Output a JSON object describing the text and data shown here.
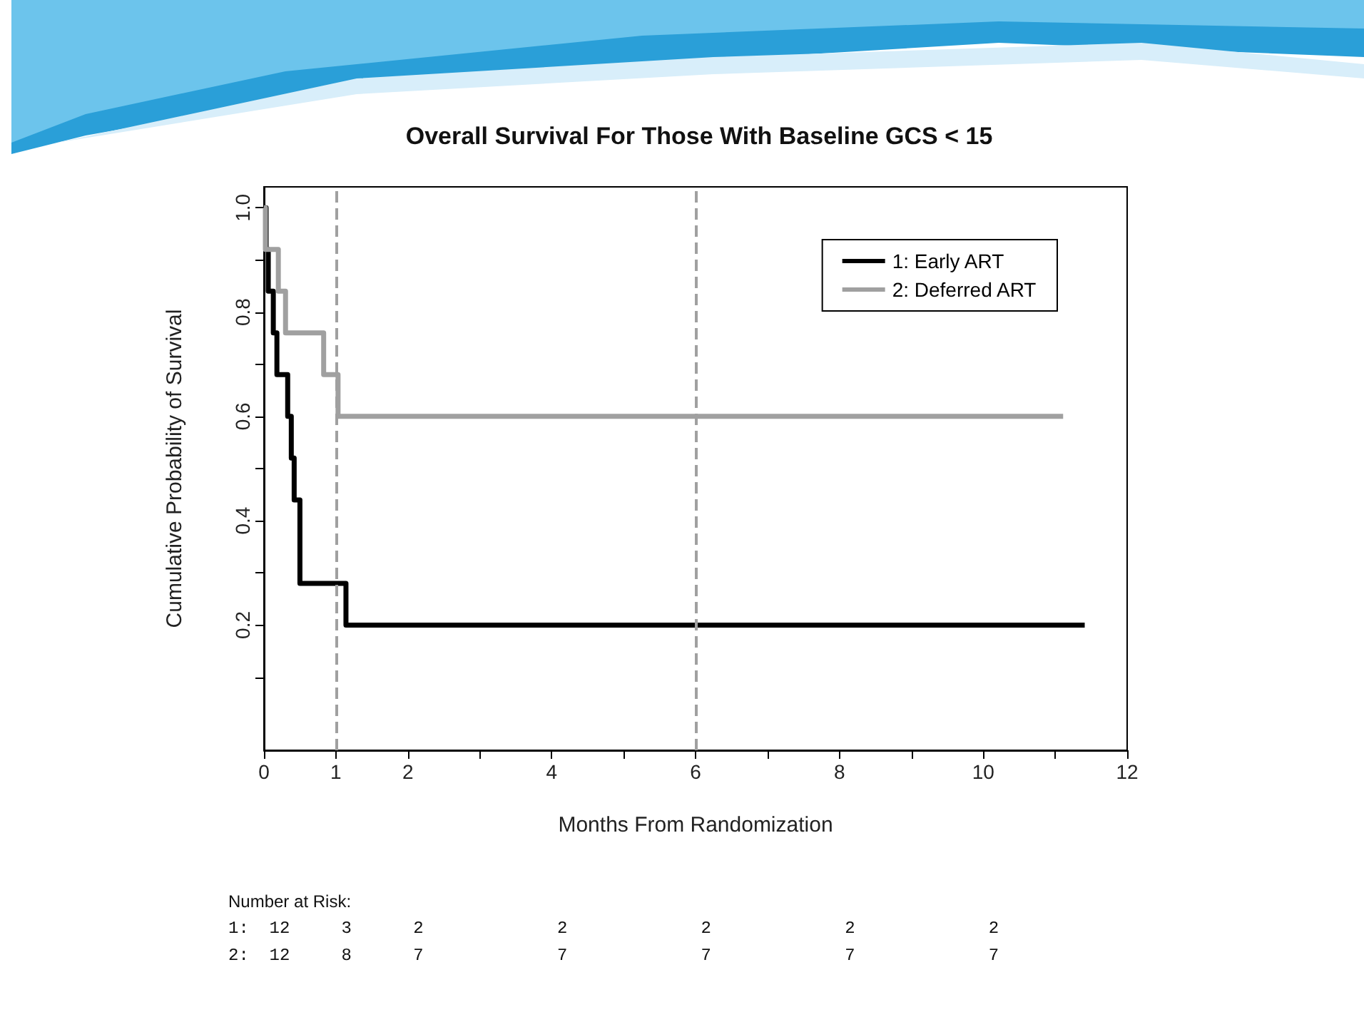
{
  "chart_data": {
    "type": "step",
    "title": "Overall Survival For Those With Baseline GCS < 15",
    "xlabel": "Months From Randomization",
    "ylabel": "Cumulative Probability of Survival",
    "series": [
      {
        "name": "1: Early ART",
        "color": "#000000",
        "x": [
          0,
          0.03,
          0.06,
          0.13,
          0.18,
          0.33,
          0.38,
          0.42,
          0.5,
          1.14,
          11.41
        ],
        "values": [
          1,
          0.92,
          0.84,
          0.76,
          0.68,
          0.6,
          0.52,
          0.44,
          0.28,
          0.2,
          0.2
        ]
      },
      {
        "name": "2: Deferred ART",
        "color": "#a0a0a0",
        "x": [
          0,
          0.02,
          0.2,
          0.3,
          0.83,
          1.03,
          11.11
        ],
        "values": [
          1,
          0.92,
          0.84,
          0.76,
          0.68,
          0.6,
          0.6
        ]
      }
    ],
    "xlim": [
      0,
      12
    ],
    "xticks": [
      0,
      1,
      2,
      {
        "value": 3,
        "label": null
      },
      4,
      {
        "value": 5,
        "label": null
      },
      6,
      {
        "value": 7,
        "label": null
      },
      8,
      {
        "value": 9,
        "label": null
      },
      10,
      {
        "value": 11,
        "label": null
      },
      12
    ],
    "ylim": [
      -0.04,
      1.04
    ],
    "yticks": [
      {
        "value": 0.1,
        "label": null
      },
      {
        "value": 0.2,
        "label": "0.2"
      },
      {
        "value": 0.3,
        "label": null
      },
      {
        "value": 0.4,
        "label": "0.4"
      },
      {
        "value": 0.5,
        "label": null
      },
      {
        "value": 0.6,
        "label": "0.6"
      },
      {
        "value": 0.7,
        "label": null
      },
      {
        "value": 0.8,
        "label": "0.8"
      },
      {
        "value": 0.9,
        "label": null
      },
      {
        "value": 1,
        "label": "1.0"
      }
    ],
    "ref_lines": [
      {
        "axis": "x",
        "value": 1,
        "color": "#a0a0a0",
        "line_style": "dashed"
      },
      {
        "axis": "x",
        "value": 6,
        "color": "#a0a0a0",
        "line_style": "dashed"
      }
    ],
    "annotations": [
      "Number at Risk:",
      "1:  12     3      2             2             2             2             2",
      "2:  12     8      7             7             7             7             7"
    ],
    "legend": "top right",
    "grid": false,
    "marker": "none",
    "line_style": "solid"
  }
}
